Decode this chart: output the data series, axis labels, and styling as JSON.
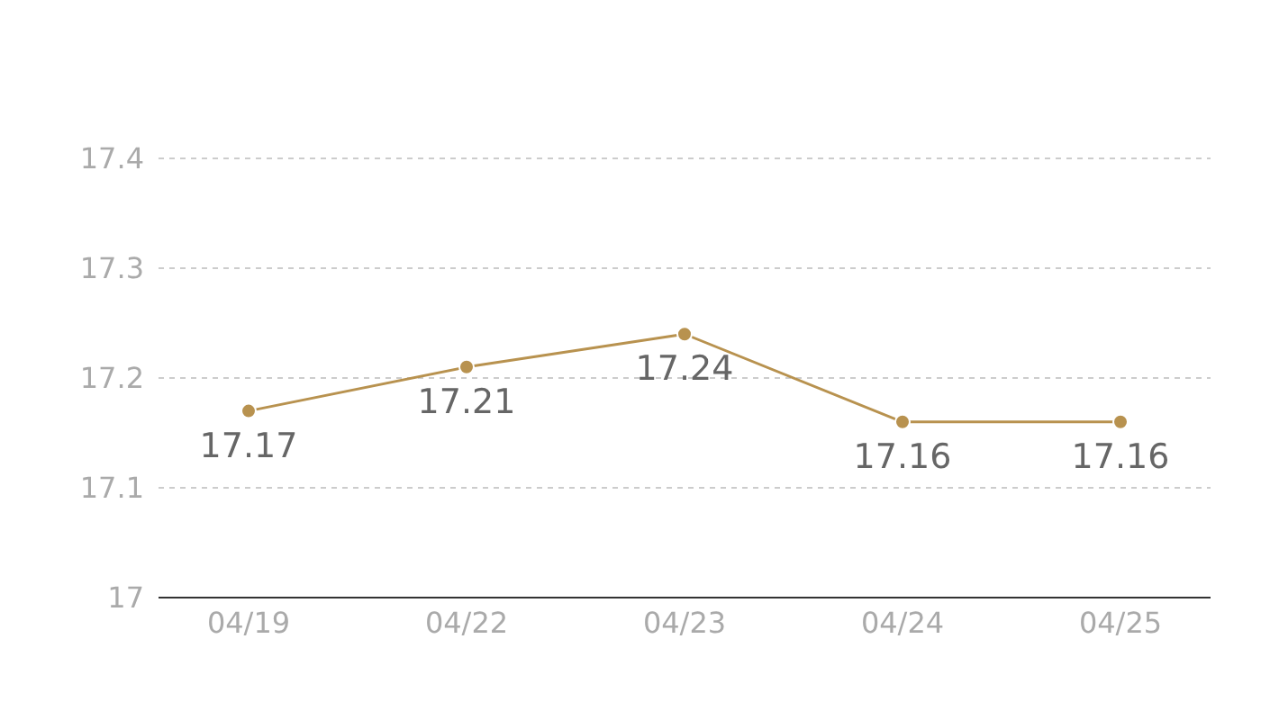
{
  "chart_data": {
    "type": "line",
    "categories": [
      "04/19",
      "04/22",
      "04/23",
      "04/24",
      "04/25"
    ],
    "series": [
      {
        "color": "#b8924f",
        "values": [
          17.17,
          17.21,
          17.24,
          17.16,
          17.16
        ]
      }
    ],
    "ylim": [
      17,
      17.4
    ],
    "yticks": [
      17,
      17.1,
      17.2,
      17.3,
      17.4
    ],
    "grid": "y",
    "marker": "circle",
    "data_labels": true
  }
}
